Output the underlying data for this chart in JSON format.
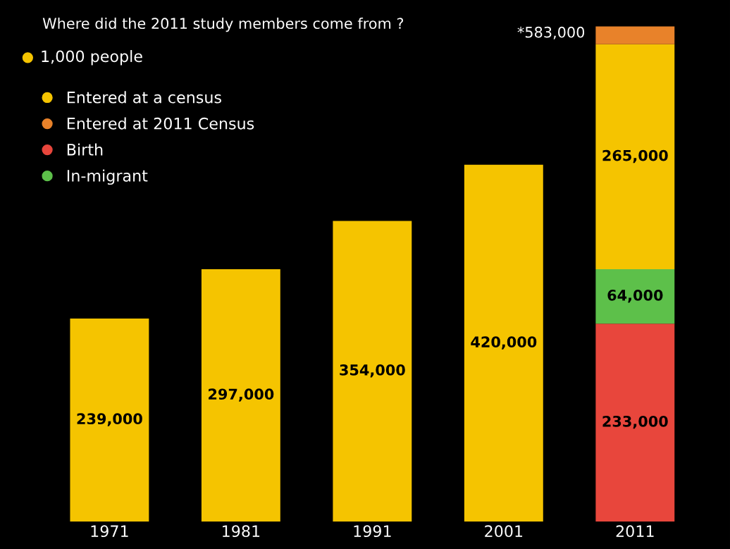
{
  "chart_data": {
    "type": "bar",
    "title": "Where did the 2011 study members come from ?",
    "stacked": true,
    "legend": "top left",
    "categories": [
      "1971",
      "1981",
      "1991",
      "2001",
      "2011"
    ],
    "series": [
      {
        "name": "Birth",
        "color": "#e8463c",
        "values": [
          null,
          null,
          null,
          null,
          233000
        ],
        "value_labels": [
          null,
          null,
          null,
          null,
          "233,000"
        ]
      },
      {
        "name": "In-migrant",
        "color": "#5dc04a",
        "values": [
          null,
          null,
          null,
          null,
          64000
        ],
        "value_labels": [
          null,
          null,
          null,
          null,
          "64,000"
        ]
      },
      {
        "name": "Entered at a census",
        "color": "#f5c400",
        "values": [
          239000,
          297000,
          354000,
          420000,
          265000
        ],
        "value_labels": [
          "239,000",
          "297,000",
          "354,000",
          "420,000",
          "265,000"
        ]
      },
      {
        "name": "Entered at 2011 Census",
        "color": "#e8822a",
        "values": [
          null,
          null,
          null,
          null,
          21000
        ],
        "value_labels": [
          null,
          null,
          null,
          null,
          null
        ]
      }
    ],
    "totals": [
      null,
      null,
      null,
      null,
      "*583,000"
    ],
    "annotations": [
      "1,000 people"
    ]
  }
}
